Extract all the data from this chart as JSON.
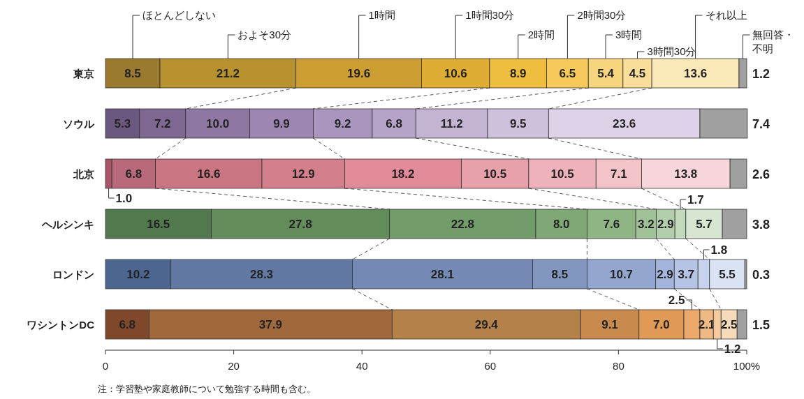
{
  "chart_data": {
    "type": "bar",
    "orientation": "horizontal",
    "stacked": true,
    "legend": "top",
    "categories": [
      "東京",
      "ソウル",
      "北京",
      "ヘルシンキ",
      "ロンドン",
      "ワシントンDC"
    ],
    "xlim": [
      0,
      100
    ],
    "xticks": [
      0,
      20,
      40,
      60,
      80,
      {
        "value": 100,
        "label": "100%"
      }
    ],
    "series": [
      {
        "name": "ほとんどしない",
        "values": [
          8.5,
          5.3,
          1.0,
          16.5,
          10.2,
          6.8
        ],
        "value_labels": [
          "8.5",
          "5.3",
          "1.0",
          "16.5",
          "10.2",
          "6.8"
        ],
        "colors": [
          "#9a7a2e",
          "#6b587f",
          "#a85567",
          "#52784d",
          "#4d6690",
          "#80482a"
        ]
      },
      {
        "name": "およそ30分",
        "values": [
          21.2,
          7.2,
          6.8,
          27.8,
          28.3,
          37.9
        ],
        "value_labels": [
          "21.2",
          "7.2",
          "6.8",
          "27.8",
          "28.3",
          "37.9"
        ],
        "colors": [
          "#b8922f",
          "#7e6892",
          "#b8697a",
          "#628c5a",
          "#6279a3",
          "#a0683d"
        ]
      },
      {
        "name": "1時間",
        "values": [
          19.6,
          10.0,
          16.6,
          22.8,
          28.1,
          29.4
        ],
        "value_labels": [
          "19.6",
          "10.0",
          "16.6",
          "22.8",
          "28.1",
          "29.4"
        ],
        "colors": [
          "#cc9d31",
          "#8e77a3",
          "#c97682",
          "#729c69",
          "#7489b3",
          "#b5814a"
        ]
      },
      {
        "name": "1時間30分",
        "values": [
          10.6,
          9.9,
          12.9,
          8.0,
          8.5,
          9.1
        ],
        "value_labels": [
          "10.6",
          "9.9",
          "12.9",
          "8.0",
          "8.5",
          "9.1"
        ],
        "colors": [
          "#e0ad34",
          "#9d86b2",
          "#d47f8c",
          "#80a877",
          "#8297c0",
          "#c98a4d"
        ]
      },
      {
        "name": "2時間",
        "values": [
          8.9,
          9.2,
          18.2,
          7.6,
          10.7,
          7.0
        ],
        "value_labels": [
          "8.9",
          "9.2",
          "18.2",
          "7.6",
          "10.7",
          "7.0"
        ],
        "colors": [
          "#f0be3f",
          "#a995bd",
          "#e08b97",
          "#8fb585",
          "#92a6d0",
          "#e09a55"
        ]
      },
      {
        "name": "2時間30分",
        "values": [
          6.5,
          6.8,
          10.5,
          3.2,
          2.9,
          2.5
        ],
        "value_labels": [
          "6.5",
          "6.8",
          "10.5",
          "3.2",
          "2.9",
          "2.5"
        ],
        "colors": [
          "#f5c95a",
          "#b6a4c8",
          "#e8a0aa",
          "#a1c298",
          "#a3b5dc",
          "#eaa86b"
        ]
      },
      {
        "name": "3時間",
        "values": [
          5.4,
          11.2,
          10.5,
          2.9,
          3.7,
          2.1
        ],
        "value_labels": [
          "5.4",
          "11.2",
          "10.5",
          "2.9",
          "3.7",
          "2.1"
        ],
        "colors": [
          "#f7d57e",
          "#c3b4d3",
          "#eeb2ba",
          "#b2ceaa",
          "#b5c4e4",
          "#efb985"
        ]
      },
      {
        "name": "3時間30分",
        "values": [
          4.5,
          9.5,
          7.1,
          1.7,
          1.8,
          1.2
        ],
        "value_labels": [
          "4.5",
          "9.5",
          "7.1",
          "1.7",
          "1.8",
          "1.2"
        ],
        "colors": [
          "#f9de99",
          "#cec1db",
          "#f2c4ca",
          "#c4dabd",
          "#c7d3ec",
          "#f3cb9f"
        ]
      },
      {
        "name": "それ以上",
        "values": [
          13.6,
          23.6,
          13.8,
          5.7,
          5.5,
          2.5
        ],
        "value_labels": [
          "13.6",
          "23.6",
          "13.8",
          "5.7",
          "5.5",
          "2.5"
        ],
        "colors": [
          "#fbe8b8",
          "#ddd2e7",
          "#f6d6da",
          "#d6e6d0",
          "#dae3f3",
          "#f6dbbb"
        ]
      },
      {
        "name": "無回答・不明",
        "values": [
          1.2,
          7.4,
          2.6,
          3.8,
          0.3,
          1.5
        ],
        "value_labels": [
          "1.2",
          "7.4",
          "2.6",
          "3.8",
          "0.3",
          "1.5"
        ],
        "colors": [
          "#a0a0a0",
          "#a0a0a0",
          "#a0a0a0",
          "#a0a0a0",
          "#a0a0a0",
          "#a0a0a0"
        ]
      }
    ],
    "annotations": [
      "注：学習塾や家庭教師について勉強する時間も含む。"
    ]
  }
}
